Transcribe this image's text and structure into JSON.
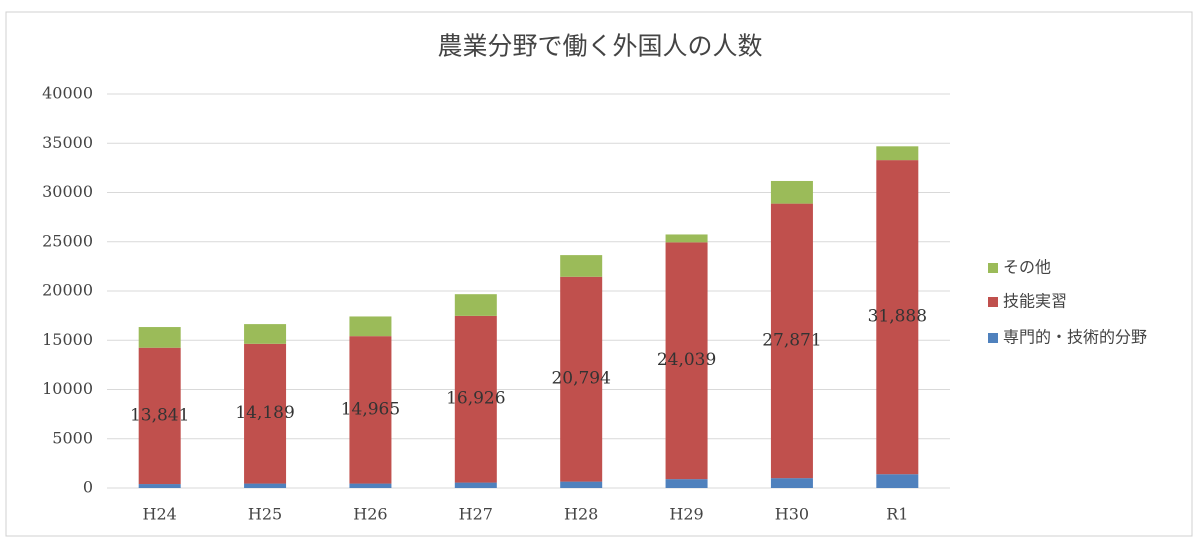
{
  "chart_data": {
    "type": "stacked_bar",
    "title": "農業分野で働く外国人の人数",
    "categories": [
      "H24",
      "H25",
      "H26",
      "H27",
      "H28",
      "H29",
      "H30",
      "R1"
    ],
    "series": [
      {
        "name": "専門的・技術的分野",
        "color": "#4f81bd",
        "values": [
          400,
          450,
          450,
          550,
          650,
          900,
          1000,
          1400
        ]
      },
      {
        "name": "技能実習",
        "color": "#c0504d",
        "values": [
          13841,
          14189,
          14965,
          16926,
          20794,
          24039,
          27871,
          31888
        ],
        "value_labels": [
          "13,841",
          "14,189",
          "14,965",
          "16,926",
          "20,794",
          "24,039",
          "27,871",
          "31,888"
        ]
      },
      {
        "name": "その他",
        "color": "#9bbb59",
        "values": [
          2100,
          2000,
          2000,
          2200,
          2200,
          800,
          2300,
          1400
        ]
      }
    ],
    "ylim": [
      0,
      40000
    ],
    "yticks": [
      0,
      5000,
      10000,
      15000,
      20000,
      25000,
      30000,
      35000,
      40000
    ],
    "grid": true,
    "legend": "right"
  }
}
